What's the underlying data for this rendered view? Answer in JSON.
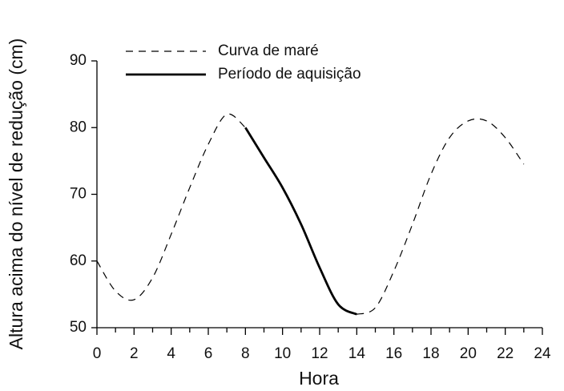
{
  "chart_data": {
    "type": "line",
    "xlabel": "Hora",
    "ylabel": "Altura acima do nível de redução (cm)",
    "x": [
      0,
      1,
      2,
      3,
      4,
      5,
      6,
      7,
      8,
      9,
      10,
      11,
      12,
      13,
      14,
      15,
      16,
      17,
      18,
      19,
      20,
      21,
      22,
      23
    ],
    "series": [
      {
        "name": "Curva de maré",
        "color": "#000000",
        "style": "dashed",
        "values": [
          60,
          55.5,
          54.2,
          57.5,
          64,
          71,
          77.5,
          82,
          80,
          null,
          null,
          null,
          null,
          null,
          52,
          53,
          58.5,
          65.5,
          73,
          78.5,
          81,
          81,
          78.5,
          74.5
        ]
      },
      {
        "name": "Período de aquisição",
        "color": "#000000",
        "style": "solid",
        "values": [
          null,
          null,
          null,
          null,
          null,
          null,
          null,
          null,
          80,
          75.5,
          71,
          65.5,
          59,
          53.5,
          52,
          null,
          null,
          null,
          null,
          null,
          null,
          null,
          null,
          null
        ]
      }
    ],
    "xlim": [
      0,
      24
    ],
    "xticks": [
      0,
      2,
      4,
      6,
      8,
      10,
      12,
      14,
      16,
      18,
      20,
      22,
      24
    ],
    "ylim": [
      50,
      90
    ],
    "yticks": [
      50,
      60,
      70,
      80,
      90
    ],
    "grid": false,
    "legend": "upper left"
  }
}
